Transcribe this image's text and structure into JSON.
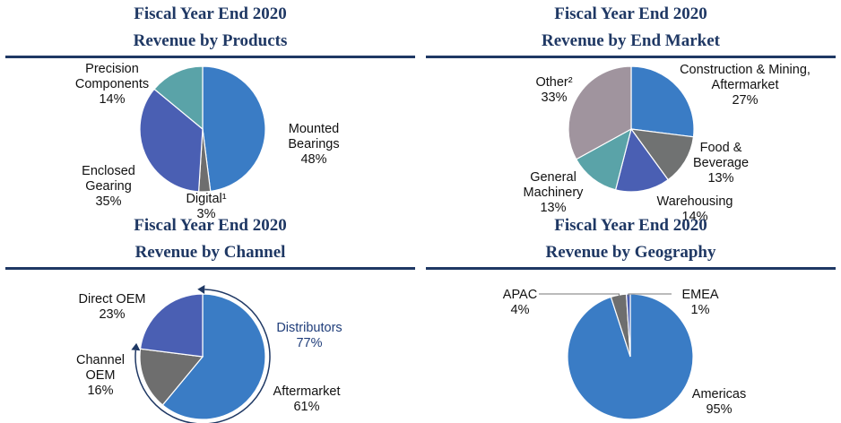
{
  "chart_data": [
    {
      "type": "pie",
      "title": [
        "Fiscal Year End 2020",
        "Revenue by Products"
      ],
      "slices": [
        {
          "name": "Mounted Bearings",
          "lines": [
            "Mounted",
            "Bearings"
          ],
          "pct": "48%",
          "value": 48,
          "color": "#3a7cc5"
        },
        {
          "name": "Digital¹",
          "lines": [
            "Digital¹"
          ],
          "pct": "3%",
          "value": 3,
          "color": "#6e6e6e"
        },
        {
          "name": "Enclosed Gearing",
          "lines": [
            "Enclosed",
            "Gearing"
          ],
          "pct": "35%",
          "value": 35,
          "color": "#4a5fb3"
        },
        {
          "name": "Precision Components",
          "lines": [
            "Precision",
            "Components"
          ],
          "pct": "14%",
          "value": 14,
          "color": "#5aa3a8"
        }
      ]
    },
    {
      "type": "pie",
      "title": [
        "Fiscal Year End 2020",
        "Revenue by End Market"
      ],
      "slices": [
        {
          "name": "Construction & Mining, Aftermarket",
          "lines": [
            "Construction & Mining,",
            "Aftermarket"
          ],
          "pct": "27%",
          "value": 27,
          "color": "#3a7cc5"
        },
        {
          "name": "Food & Beverage",
          "lines": [
            "Food &",
            "Beverage"
          ],
          "pct": "13%",
          "value": 13,
          "color": "#707272"
        },
        {
          "name": "Warehousing",
          "lines": [
            "Warehousing"
          ],
          "pct": "14%",
          "value": 14,
          "color": "#4a5fb3"
        },
        {
          "name": "General Machinery",
          "lines": [
            "General",
            "Machinery"
          ],
          "pct": "13%",
          "value": 13,
          "color": "#5aa3a8"
        },
        {
          "name": "Other²",
          "lines": [
            "Other²"
          ],
          "pct": "33%",
          "value": 33,
          "color": "#a0949e"
        }
      ]
    },
    {
      "type": "pie",
      "title": [
        "Fiscal Year End 2020",
        "Revenue by Channel"
      ],
      "slices": [
        {
          "name": "Aftermarket",
          "lines": [
            "Aftermarket"
          ],
          "pct": "61%",
          "value": 61,
          "color": "#3a7cc5"
        },
        {
          "name": "Channel OEM",
          "lines": [
            "Channel",
            "OEM"
          ],
          "pct": "16%",
          "value": 16,
          "color": "#6e6e6e"
        },
        {
          "name": "Direct OEM",
          "lines": [
            "Direct OEM"
          ],
          "pct": "23%",
          "value": 23,
          "color": "#4a5fb3"
        }
      ],
      "annotation": {
        "name": "Distributors",
        "lines": [
          "Distributors"
        ],
        "pct": "77%"
      }
    },
    {
      "type": "pie",
      "title": [
        "Fiscal Year End 2020",
        "Revenue by Geography"
      ],
      "slices": [
        {
          "name": "Americas",
          "lines": [
            "Americas"
          ],
          "pct": "95%",
          "value": 95,
          "color": "#3a7cc5"
        },
        {
          "name": "APAC",
          "lines": [
            "APAC"
          ],
          "pct": "4%",
          "value": 4,
          "color": "#6e6e6e"
        },
        {
          "name": "EMEA",
          "lines": [
            "EMEA"
          ],
          "pct": "1%",
          "value": 1,
          "color": "#4a5fb3"
        }
      ]
    }
  ]
}
